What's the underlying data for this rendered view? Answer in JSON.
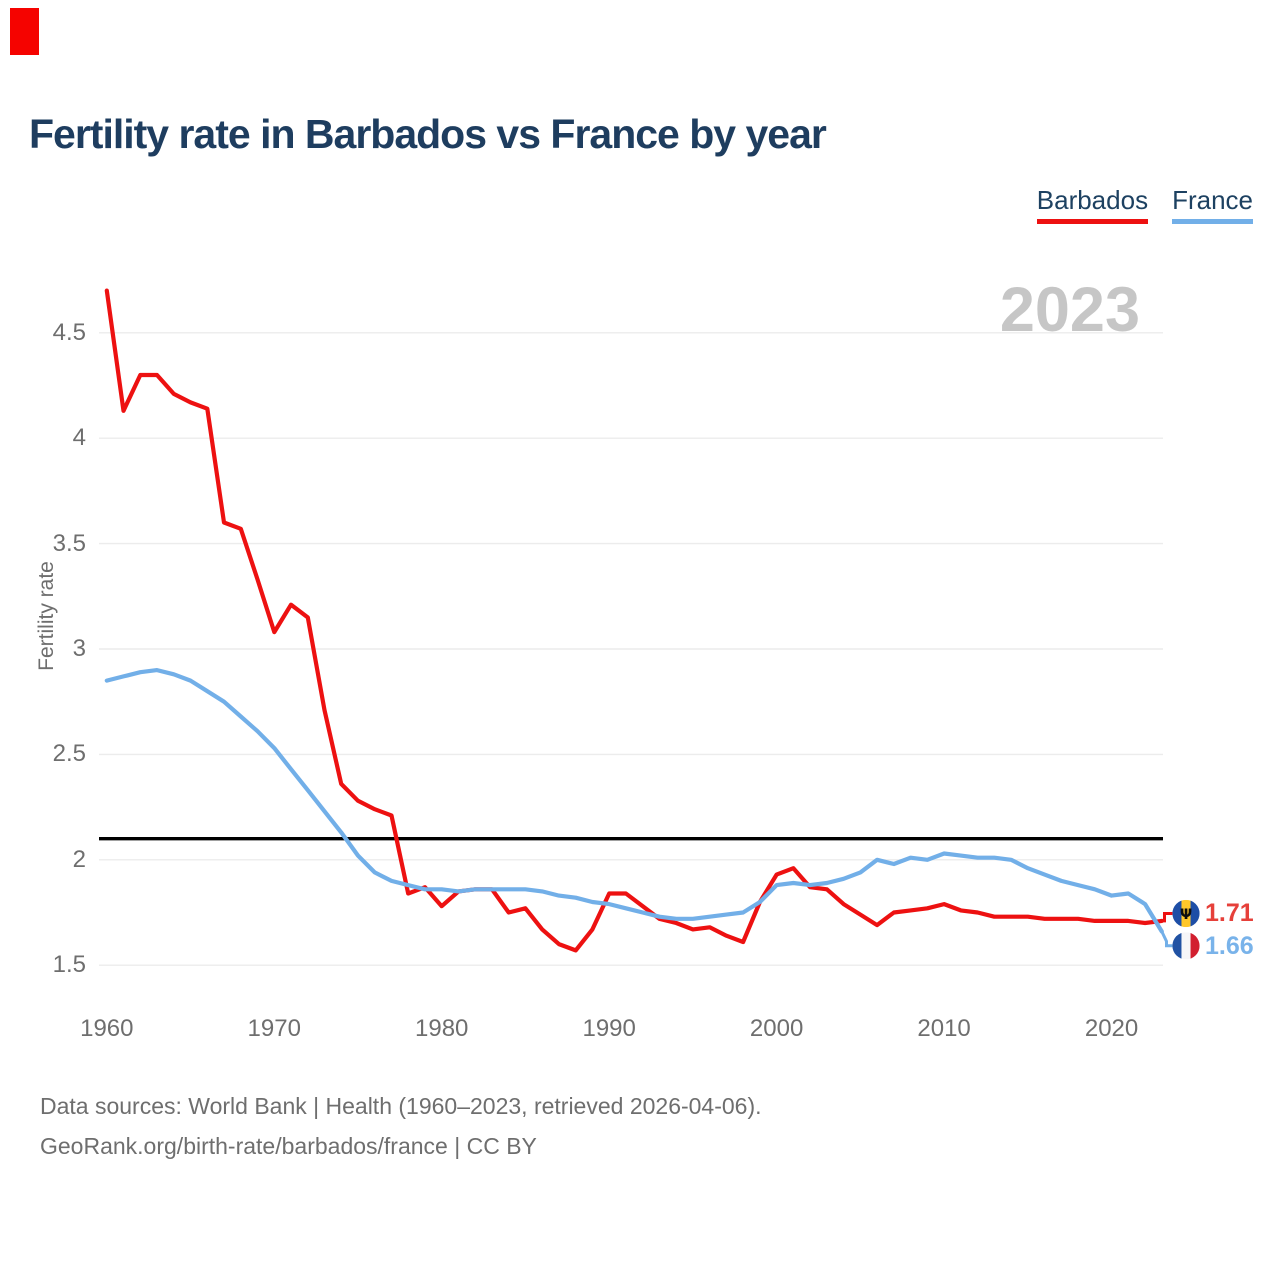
{
  "header": {
    "title": "Fertility rate in Barbados vs France by year"
  },
  "legend": {
    "items": [
      {
        "label": "Barbados",
        "color": "#ed1111"
      },
      {
        "label": "France",
        "color": "#72afe8"
      }
    ]
  },
  "watermark": "2023",
  "marker": {
    "color": "#f50300"
  },
  "axis": {
    "ylabel": "Fertility rate",
    "yticks": [
      "1.5",
      "2",
      "2.5",
      "3",
      "3.5",
      "4",
      "4.5"
    ],
    "xticks": [
      "1960",
      "1970",
      "1980",
      "1990",
      "2000",
      "2010",
      "2020"
    ],
    "reference_line": 2.1
  },
  "end_labels": [
    {
      "series": "Barbados",
      "value": "1.71",
      "flag": "barbados",
      "color": "#e6403a"
    },
    {
      "series": "France",
      "value": "1.66",
      "flag": "france",
      "color": "#79b3ea"
    }
  ],
  "flags": {
    "barbados": {
      "stripes": [
        "#1d4ea6",
        "#ffc72a",
        "#1d4ea6"
      ],
      "trident": "#0d0d0d"
    },
    "france": {
      "stripes": [
        "#2152a3",
        "#f6f6f8",
        "#d21f2f"
      ]
    }
  },
  "footer": {
    "line1": "Data sources: World Bank | Health (1960–2023, retrieved 2026-04-06).",
    "line2": "GeoRank.org/birth-rate/barbados/france | CC BY"
  },
  "colors": {
    "grid": "#ececec",
    "reference": "#000000",
    "text_gray": "#6e6e6e",
    "watermark": "#c6c6c6",
    "title": "#1e3d5f"
  },
  "chart_data": {
    "type": "line",
    "title": "Fertility rate in Barbados vs France by year",
    "xlabel": "",
    "ylabel": "Fertility rate",
    "xlim": [
      1960,
      2023
    ],
    "ylim": [
      1.3,
      4.8
    ],
    "grid": true,
    "legend_position": "top-right",
    "annotations": {
      "reference_line_y": 2.1,
      "watermark": "2023"
    },
    "x": [
      1960,
      1961,
      1962,
      1963,
      1964,
      1965,
      1966,
      1967,
      1968,
      1969,
      1970,
      1971,
      1972,
      1973,
      1974,
      1975,
      1976,
      1977,
      1978,
      1979,
      1980,
      1981,
      1982,
      1983,
      1984,
      1985,
      1986,
      1987,
      1988,
      1989,
      1990,
      1991,
      1992,
      1993,
      1994,
      1995,
      1996,
      1997,
      1998,
      1999,
      2000,
      2001,
      2002,
      2003,
      2004,
      2005,
      2006,
      2007,
      2008,
      2009,
      2010,
      2011,
      2012,
      2013,
      2014,
      2015,
      2016,
      2017,
      2018,
      2019,
      2020,
      2021,
      2022,
      2023
    ],
    "series": [
      {
        "name": "Barbados",
        "color": "#ed1111",
        "final_label": 1.71,
        "values": [
          4.7,
          4.13,
          4.3,
          4.3,
          4.21,
          4.17,
          4.14,
          3.6,
          3.57,
          3.33,
          3.08,
          3.21,
          3.15,
          2.71,
          2.36,
          2.28,
          2.24,
          2.21,
          1.84,
          1.87,
          1.78,
          1.85,
          1.86,
          1.86,
          1.75,
          1.77,
          1.67,
          1.6,
          1.57,
          1.67,
          1.84,
          1.84,
          1.78,
          1.72,
          1.7,
          1.67,
          1.68,
          1.64,
          1.61,
          1.8,
          1.93,
          1.96,
          1.87,
          1.86,
          1.79,
          1.74,
          1.69,
          1.75,
          1.76,
          1.77,
          1.79,
          1.76,
          1.75,
          1.73,
          1.73,
          1.73,
          1.72,
          1.72,
          1.72,
          1.71,
          1.71,
          1.71,
          1.7,
          1.71
        ]
      },
      {
        "name": "France",
        "color": "#72afe8",
        "final_label": 1.66,
        "values": [
          2.85,
          2.87,
          2.89,
          2.9,
          2.88,
          2.85,
          2.8,
          2.75,
          2.68,
          2.61,
          2.53,
          2.43,
          2.33,
          2.23,
          2.13,
          2.02,
          1.94,
          1.9,
          1.88,
          1.86,
          1.86,
          1.85,
          1.86,
          1.86,
          1.86,
          1.86,
          1.85,
          1.83,
          1.82,
          1.8,
          1.79,
          1.77,
          1.75,
          1.73,
          1.72,
          1.72,
          1.73,
          1.74,
          1.75,
          1.8,
          1.88,
          1.89,
          1.88,
          1.89,
          1.91,
          1.94,
          2.0,
          1.98,
          2.01,
          2.0,
          2.03,
          2.02,
          2.01,
          2.01,
          2.0,
          1.96,
          1.93,
          1.9,
          1.88,
          1.86,
          1.83,
          1.84,
          1.79,
          1.66
        ]
      }
    ]
  }
}
